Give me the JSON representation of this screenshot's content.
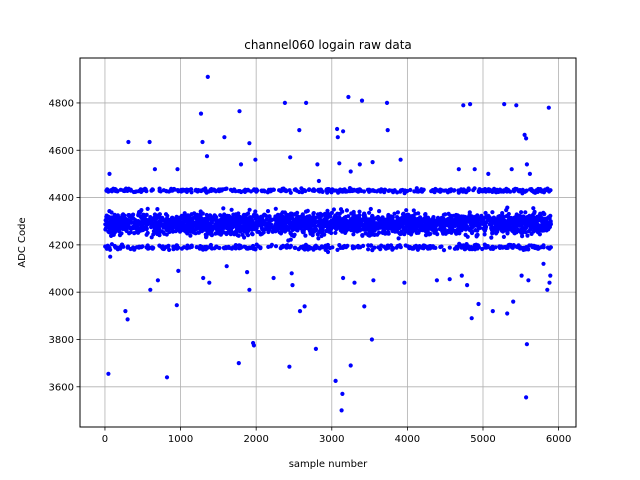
{
  "chart_data": {
    "type": "scatter",
    "title": "channel060 logain raw data",
    "xlabel": "sample number",
    "ylabel": "ADC Code",
    "xlim": [
      -330,
      6230
    ],
    "ylim": [
      3430,
      4990
    ],
    "xticks": [
      0,
      1000,
      2000,
      3000,
      4000,
      5000,
      6000
    ],
    "yticks": [
      3600,
      3800,
      4000,
      4200,
      4400,
      4600,
      4800
    ],
    "grid": true,
    "marker_color": "#0000ff",
    "series": [
      {
        "name": "",
        "core_band": {
          "x_range": [
            0,
            5900
          ],
          "y_center": 4290,
          "y_spread": 45,
          "count": 2400
        },
        "upper_band": {
          "x_range": [
            0,
            5900
          ],
          "y_center": 4430,
          "y_spread": 8,
          "count": 380
        },
        "lower_band": {
          "x_range": [
            0,
            5900
          ],
          "y_center": 4190,
          "y_spread": 10,
          "count": 380
        },
        "points": [
          [
            45,
            3655
          ],
          [
            60,
            4500
          ],
          [
            30,
            4435
          ],
          [
            70,
            4150
          ],
          [
            270,
            3920
          ],
          [
            300,
            3885
          ],
          [
            310,
            4635
          ],
          [
            590,
            4635
          ],
          [
            600,
            4010
          ],
          [
            660,
            4520
          ],
          [
            700,
            4050
          ],
          [
            820,
            3640
          ],
          [
            950,
            3945
          ],
          [
            960,
            4520
          ],
          [
            970,
            4090
          ],
          [
            1270,
            4755
          ],
          [
            1290,
            4635
          ],
          [
            1300,
            4060
          ],
          [
            1360,
            4910
          ],
          [
            1350,
            4575
          ],
          [
            1380,
            4040
          ],
          [
            1580,
            4655
          ],
          [
            1610,
            4110
          ],
          [
            1770,
            3700
          ],
          [
            1780,
            4765
          ],
          [
            1800,
            4540
          ],
          [
            1880,
            4085
          ],
          [
            1910,
            4630
          ],
          [
            1910,
            4010
          ],
          [
            1960,
            3785
          ],
          [
            1970,
            3775
          ],
          [
            1990,
            4560
          ],
          [
            2230,
            4060
          ],
          [
            2380,
            4800
          ],
          [
            2440,
            3685
          ],
          [
            2450,
            4570
          ],
          [
            2470,
            4080
          ],
          [
            2480,
            4030
          ],
          [
            2570,
            4685
          ],
          [
            2580,
            3920
          ],
          [
            2640,
            3940
          ],
          [
            2660,
            4800
          ],
          [
            2790,
            3760
          ],
          [
            2810,
            4540
          ],
          [
            2830,
            4470
          ],
          [
            2950,
            4170
          ],
          [
            3050,
            3625
          ],
          [
            3070,
            4690
          ],
          [
            3080,
            4655
          ],
          [
            3100,
            4545
          ],
          [
            3130,
            3500
          ],
          [
            3140,
            3570
          ],
          [
            3150,
            4680
          ],
          [
            3150,
            4060
          ],
          [
            3220,
            4825
          ],
          [
            3250,
            3690
          ],
          [
            3250,
            4510
          ],
          [
            3300,
            4040
          ],
          [
            3370,
            4540
          ],
          [
            3400,
            4810
          ],
          [
            3430,
            3940
          ],
          [
            3530,
            3800
          ],
          [
            3540,
            4550
          ],
          [
            3550,
            4050
          ],
          [
            3730,
            4800
          ],
          [
            3740,
            4685
          ],
          [
            3910,
            4560
          ],
          [
            3960,
            4040
          ],
          [
            4390,
            4050
          ],
          [
            4560,
            4055
          ],
          [
            4680,
            4520
          ],
          [
            4720,
            4070
          ],
          [
            4740,
            4790
          ],
          [
            4790,
            4030
          ],
          [
            4830,
            4795
          ],
          [
            4850,
            3890
          ],
          [
            4890,
            4520
          ],
          [
            4940,
            3950
          ],
          [
            5070,
            4500
          ],
          [
            5130,
            3920
          ],
          [
            5280,
            4795
          ],
          [
            5320,
            3910
          ],
          [
            5380,
            4520
          ],
          [
            5400,
            3960
          ],
          [
            5440,
            4790
          ],
          [
            5510,
            4070
          ],
          [
            5550,
            4665
          ],
          [
            5570,
            4650
          ],
          [
            5580,
            3780
          ],
          [
            5570,
            3555
          ],
          [
            5580,
            4540
          ],
          [
            5600,
            4050
          ],
          [
            5620,
            4500
          ],
          [
            5690,
            4420
          ],
          [
            5850,
            4010
          ],
          [
            5870,
            4780
          ],
          [
            5880,
            4040
          ],
          [
            5890,
            4070
          ],
          [
            5800,
            4120
          ]
        ]
      }
    ]
  }
}
